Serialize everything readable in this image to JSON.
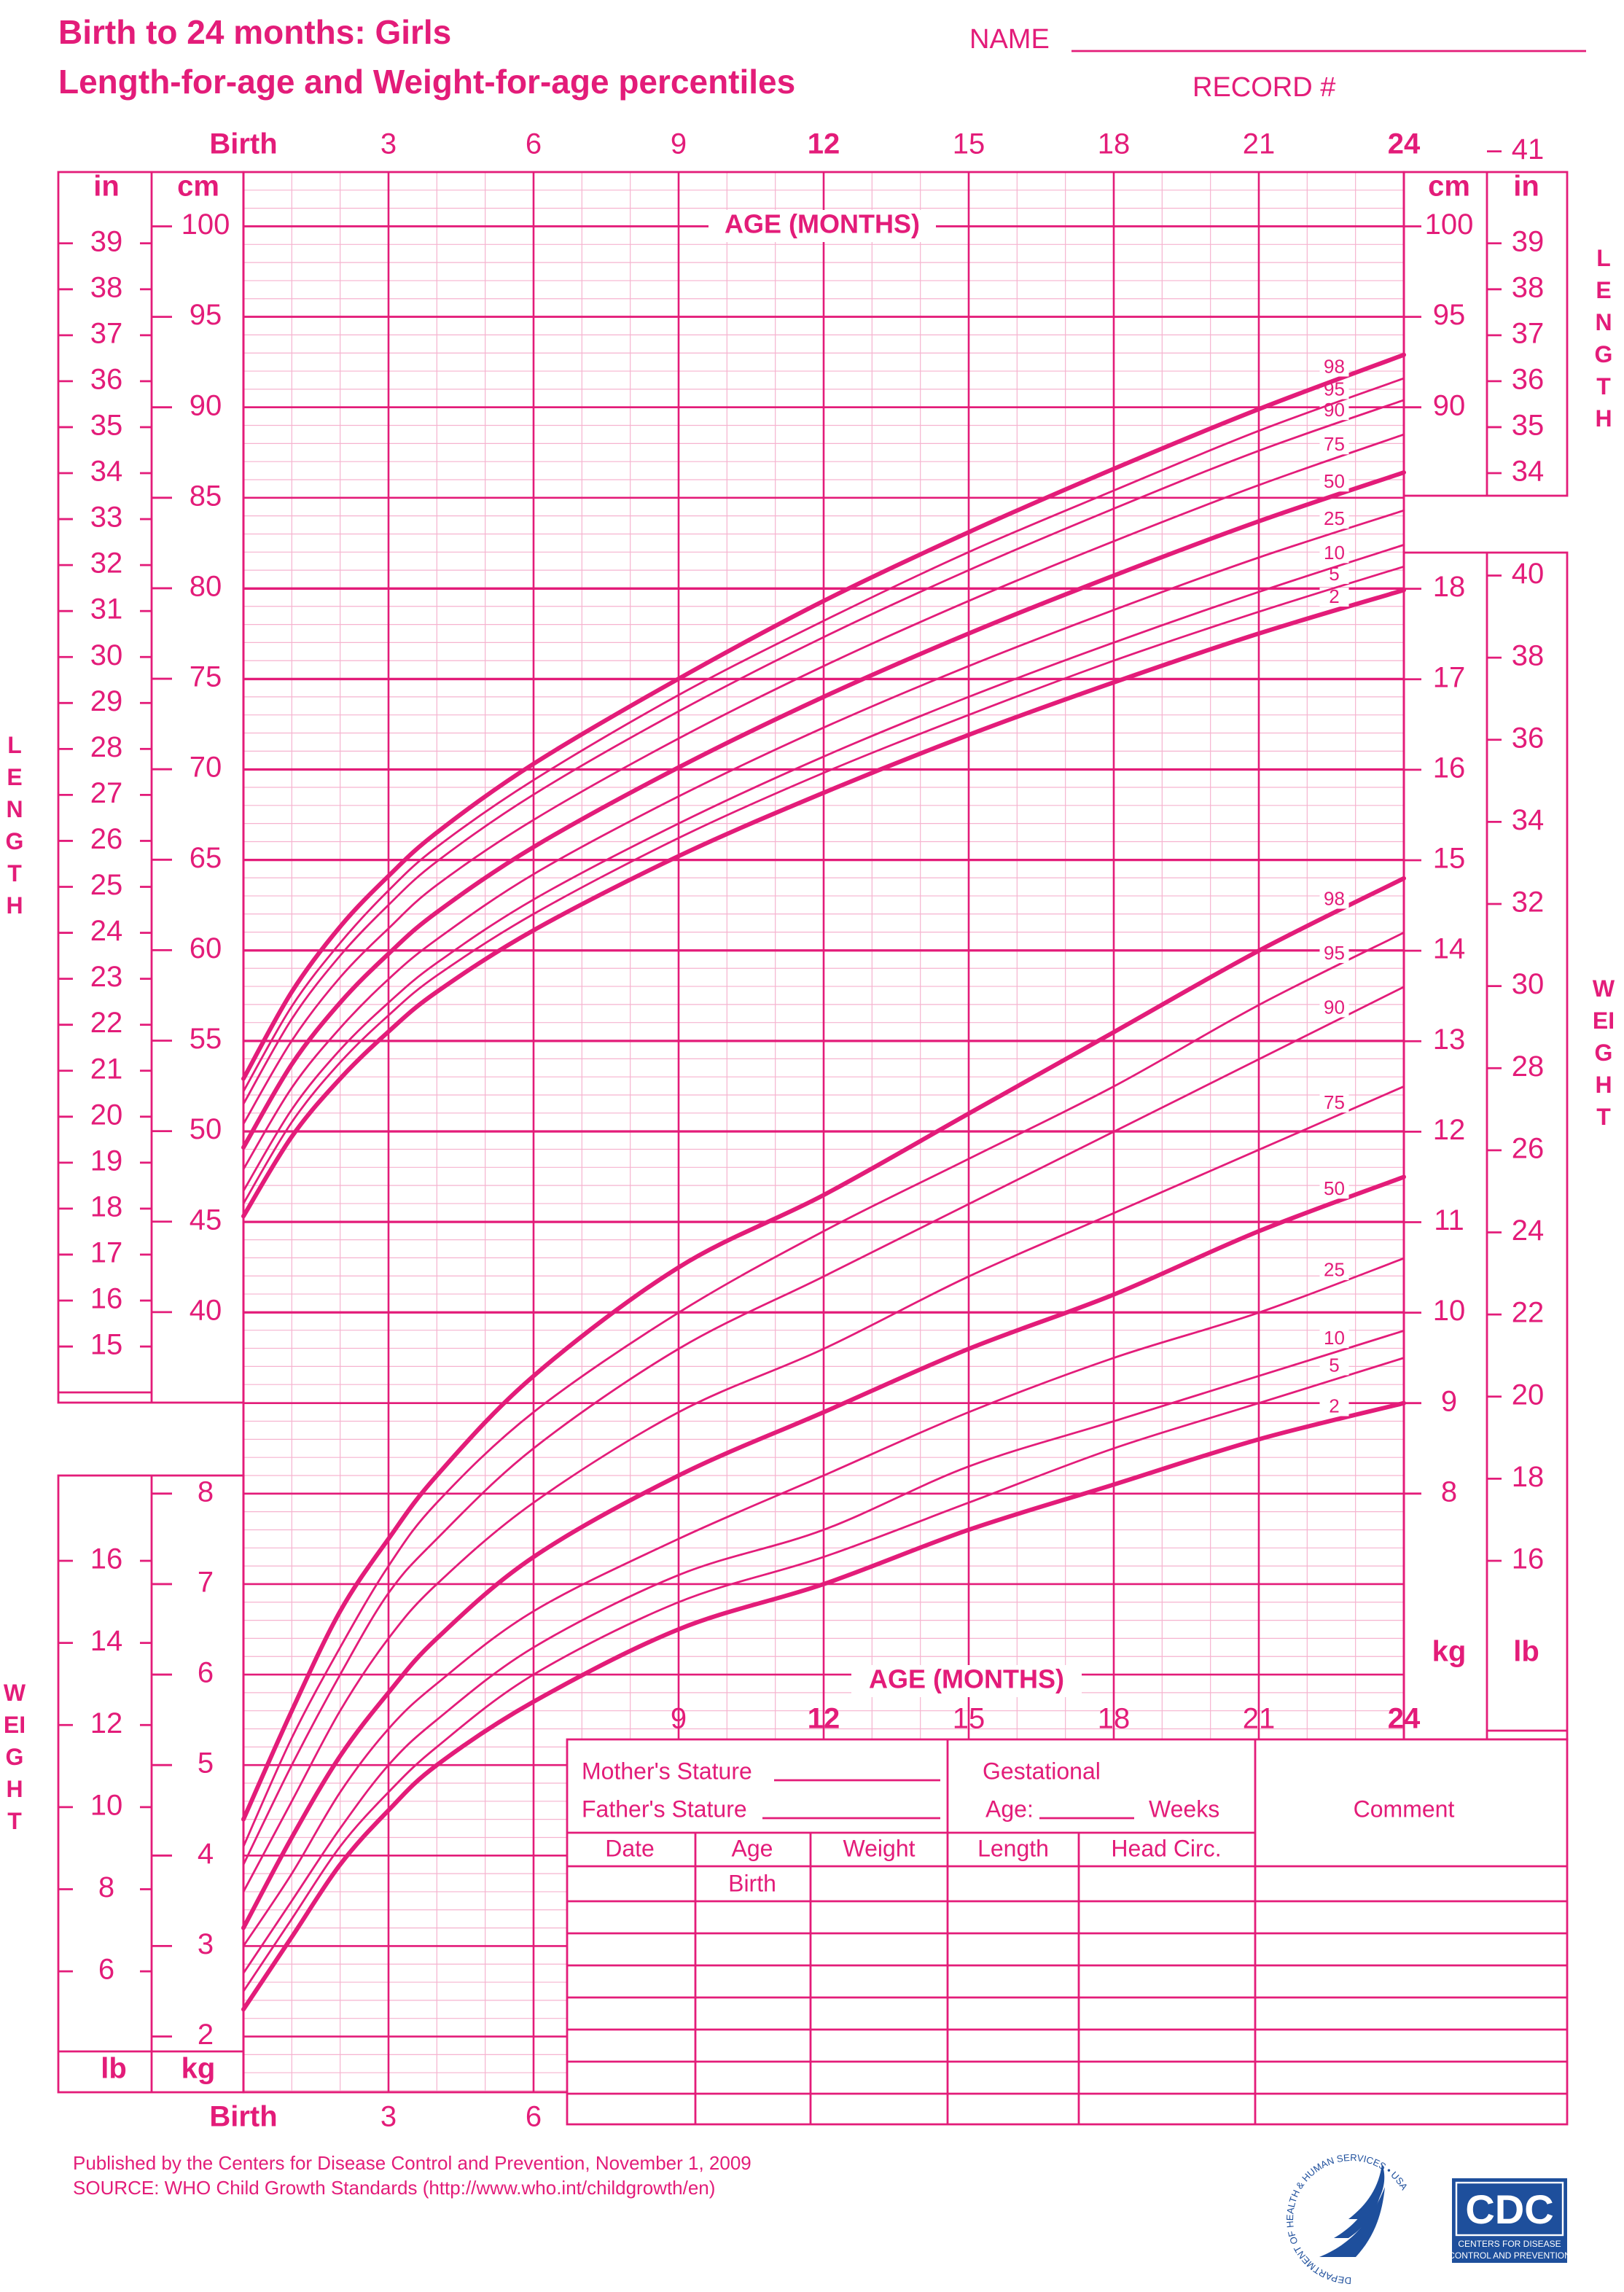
{
  "header": {
    "title": "Birth to 24 months: Girls",
    "subtitle": "Length-for-age and Weight-for-age percentiles",
    "name_label": "NAME",
    "record_label": "RECORD #"
  },
  "chart_data": [
    {
      "type": "line",
      "y_label": "LENGTH",
      "x_label": "AGE (MONTHS)",
      "y_unit": "cm",
      "y2_unit": "in",
      "color": "#e31c79",
      "x": [
        0,
        1,
        2,
        3,
        4,
        6,
        9,
        12,
        15,
        18,
        21,
        24
      ],
      "xlim": [
        0,
        24
      ],
      "xticks": [
        {
          "value": 0,
          "label": "Birth"
        },
        3,
        6,
        9,
        12,
        15,
        18,
        21,
        24
      ],
      "x_minor_step": 1,
      "ylim": [
        35,
        103
      ],
      "yticks": [
        40,
        45,
        50,
        55,
        60,
        65,
        70,
        75,
        80,
        85,
        90,
        95,
        100
      ],
      "yticks_right": [
        90,
        95,
        100
      ],
      "y_minor_step": 1,
      "y2lim": [
        13.78,
        40.55
      ],
      "y2ticks": [
        15,
        16,
        17,
        18,
        19,
        20,
        21,
        22,
        23,
        24,
        25,
        26,
        27,
        28,
        29,
        30,
        31,
        32,
        33,
        34,
        35,
        36,
        37,
        38,
        39
      ],
      "y2ticks_right": [
        34,
        35,
        36,
        37,
        38,
        39,
        41
      ],
      "series": [
        {
          "name": "2",
          "bold": true,
          "values": [
            45.3,
            49.7,
            52.9,
            55.5,
            57.7,
            61.1,
            65.2,
            68.7,
            71.9,
            74.8,
            77.5,
            79.9
          ]
        },
        {
          "name": "5",
          "bold": false,
          "values": [
            46.0,
            50.5,
            53.8,
            56.4,
            58.6,
            62.0,
            66.2,
            69.8,
            73.0,
            76.0,
            78.7,
            81.2
          ]
        },
        {
          "name": "10",
          "bold": false,
          "values": [
            46.7,
            51.2,
            54.5,
            57.1,
            59.3,
            62.8,
            67.0,
            70.7,
            74.0,
            77.0,
            79.8,
            82.4
          ]
        },
        {
          "name": "25",
          "bold": false,
          "values": [
            47.9,
            52.4,
            55.7,
            58.4,
            60.6,
            64.2,
            68.5,
            72.3,
            75.7,
            78.8,
            81.7,
            84.3
          ]
        },
        {
          "name": "50",
          "bold": true,
          "values": [
            49.1,
            53.7,
            57.1,
            59.8,
            62.1,
            65.7,
            70.1,
            74.0,
            77.5,
            80.7,
            83.7,
            86.4
          ]
        },
        {
          "name": "75",
          "bold": false,
          "values": [
            50.4,
            55.0,
            58.5,
            61.2,
            63.6,
            67.2,
            71.7,
            75.7,
            79.3,
            82.6,
            85.7,
            88.5
          ]
        },
        {
          "name": "90",
          "bold": false,
          "values": [
            51.5,
            56.2,
            59.7,
            62.5,
            64.9,
            68.6,
            73.2,
            77.3,
            81.0,
            84.4,
            87.6,
            90.4
          ]
        },
        {
          "name": "95",
          "bold": false,
          "values": [
            52.2,
            56.9,
            60.4,
            63.3,
            65.7,
            69.4,
            74.1,
            78.2,
            82.0,
            85.4,
            88.7,
            91.6
          ]
        },
        {
          "name": "98",
          "bold": true,
          "values": [
            52.9,
            57.7,
            61.3,
            64.1,
            66.5,
            70.3,
            75.0,
            79.3,
            83.1,
            86.6,
            89.9,
            92.9
          ]
        }
      ]
    },
    {
      "type": "line",
      "y_label": "WEIGHT",
      "x_label": "AGE (MONTHS)",
      "y_unit": "kg",
      "y2_unit": "lb",
      "color": "#e31c79",
      "x": [
        0,
        1,
        2,
        3,
        4,
        6,
        9,
        12,
        15,
        18,
        21,
        24
      ],
      "xlim": [
        0,
        24
      ],
      "xticks": [
        {
          "value": 0,
          "label": "Birth"
        },
        3,
        6,
        9,
        12,
        15,
        18,
        21,
        24
      ],
      "x_minor_step": 1,
      "ylim": [
        1.4,
        18.4
      ],
      "yticks": [
        2,
        3,
        4,
        5,
        6,
        7,
        8
      ],
      "yticks_right": [
        8,
        9,
        10,
        11,
        12,
        13,
        14,
        15,
        16,
        17,
        18
      ],
      "y_minor_step": 0.2,
      "y2lim": [
        3.09,
        40.56
      ],
      "y2ticks": [
        6,
        8,
        10,
        12,
        14,
        16
      ],
      "y2ticks_right": [
        16,
        18,
        20,
        22,
        24,
        26,
        28,
        30,
        32,
        34,
        36,
        38,
        40
      ],
      "series": [
        {
          "name": "2",
          "bold": true,
          "values": [
            2.3,
            3.1,
            3.9,
            4.5,
            5.0,
            5.7,
            6.5,
            7.0,
            7.6,
            8.1,
            8.6,
            9.0
          ]
        },
        {
          "name": "5",
          "bold": false,
          "values": [
            2.5,
            3.3,
            4.1,
            4.7,
            5.2,
            6.0,
            6.8,
            7.3,
            7.9,
            8.5,
            9.0,
            9.5
          ]
        },
        {
          "name": "10",
          "bold": false,
          "values": [
            2.7,
            3.5,
            4.3,
            5.0,
            5.5,
            6.3,
            7.1,
            7.6,
            8.3,
            8.8,
            9.3,
            9.8
          ]
        },
        {
          "name": "25",
          "bold": false,
          "values": [
            3.0,
            3.8,
            4.7,
            5.4,
            5.9,
            6.7,
            7.5,
            8.2,
            8.9,
            9.5,
            10.0,
            10.6
          ]
        },
        {
          "name": "50",
          "bold": true,
          "values": [
            3.2,
            4.2,
            5.1,
            5.8,
            6.4,
            7.3,
            8.2,
            8.9,
            9.6,
            10.2,
            10.9,
            11.5
          ]
        },
        {
          "name": "75",
          "bold": false,
          "values": [
            3.6,
            4.6,
            5.6,
            6.4,
            7.0,
            7.9,
            8.9,
            9.6,
            10.4,
            11.1,
            11.8,
            12.5
          ]
        },
        {
          "name": "90",
          "bold": false,
          "values": [
            3.9,
            5.0,
            6.0,
            6.9,
            7.5,
            8.5,
            9.6,
            10.4,
            11.2,
            12.0,
            12.8,
            13.6
          ]
        },
        {
          "name": "95",
          "bold": false,
          "values": [
            4.1,
            5.3,
            6.3,
            7.2,
            7.9,
            8.9,
            10.0,
            10.9,
            11.7,
            12.5,
            13.4,
            14.2
          ]
        },
        {
          "name": "98",
          "bold": true,
          "values": [
            4.4,
            5.6,
            6.7,
            7.5,
            8.2,
            9.3,
            10.5,
            11.3,
            12.2,
            13.1,
            14.0,
            14.8
          ]
        }
      ]
    }
  ],
  "form": {
    "mother_stature": "Mother's Stature",
    "father_stature": "Father's Stature",
    "gestational": "Gestational",
    "age": "Age:",
    "weeks": "Weeks",
    "comment": "Comment",
    "columns": [
      "Date",
      "Age",
      "Weight",
      "Length",
      "Head  Circ."
    ],
    "first_row_age": "Birth"
  },
  "footer": {
    "published": "Published by the Centers for Disease Control and Prevention, November 1, 2009",
    "source": "SOURCE:  WHO Child Growth Standards (http://www.who.int/childgrowth/en)"
  },
  "logos": {
    "hhs": "DEPARTMENT OF HEALTH & HUMAN SERVICES • USA",
    "cdc": "CDC",
    "cdc_line1": "CENTERS FOR DISEASE",
    "cdc_line2": "CONTROL AND PREVENTION"
  }
}
